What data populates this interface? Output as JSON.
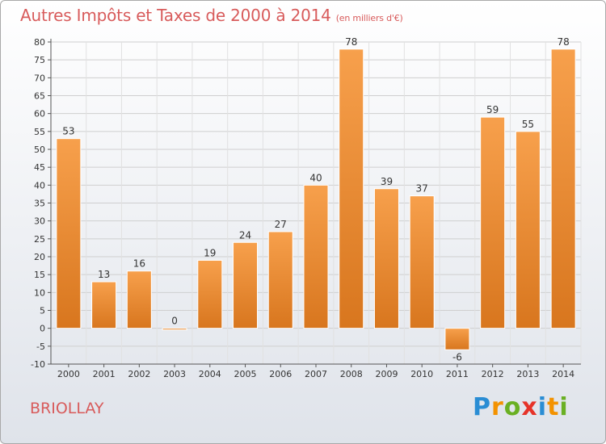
{
  "header": {
    "title": "Autres Impôts et Taxes de 2000 à 2014",
    "subtitle": "(en milliers d'€)"
  },
  "footer": {
    "town": "BRIOLLAY",
    "logo": [
      "P",
      "r",
      "o",
      "x",
      "i",
      "t",
      "i"
    ]
  },
  "colors": {
    "bar_top": "#f7a04c",
    "bar_bottom": "#d8761e",
    "title": "#d85b5b",
    "grid": "#cfcfcf"
  },
  "chart_data": {
    "type": "bar",
    "title": "Autres Impôts et Taxes de 2000 à 2014",
    "subtitle": "(en milliers d'€)",
    "categories": [
      "2000",
      "2001",
      "2002",
      "2003",
      "2004",
      "2005",
      "2006",
      "2007",
      "2008",
      "2009",
      "2010",
      "2011",
      "2012",
      "2013",
      "2014"
    ],
    "values": [
      53,
      13,
      16,
      0,
      19,
      24,
      27,
      40,
      78,
      39,
      37,
      -6,
      59,
      55,
      78
    ],
    "yticks": [
      -10,
      -5,
      0,
      5,
      10,
      15,
      20,
      25,
      30,
      35,
      40,
      45,
      50,
      55,
      60,
      65,
      70,
      75,
      80
    ],
    "ylim": [
      -10,
      80
    ],
    "grid": true
  }
}
